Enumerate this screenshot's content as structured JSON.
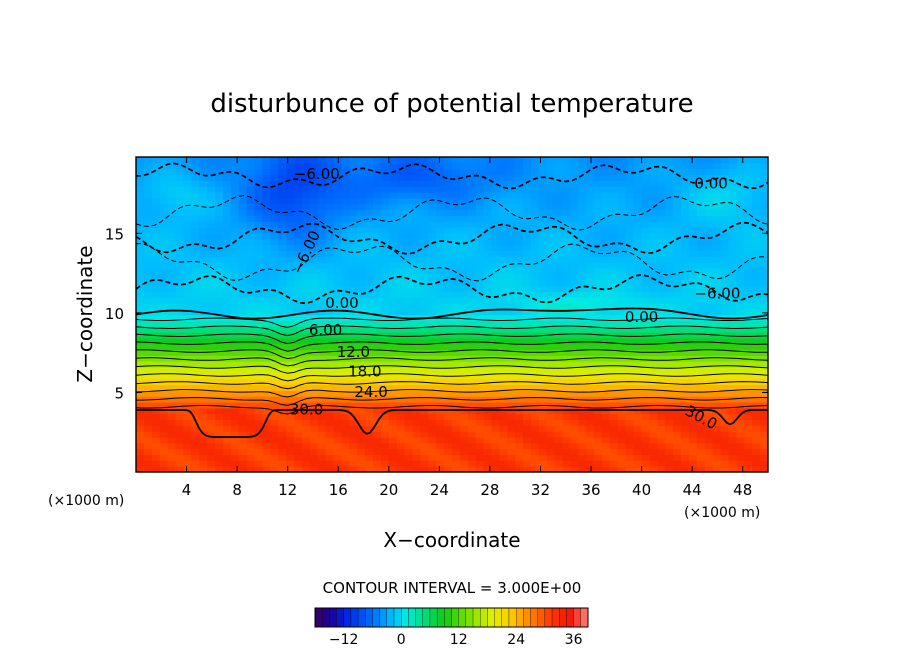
{
  "chart_data": {
    "type": "heatmap",
    "title": "disturbunce of potential temperature",
    "xlabel": "X−coordinate",
    "ylabel": "Z−coordinate",
    "x_unit_label": "(×1000 m)",
    "y_unit_label": "(×1000 m)",
    "xlim": [
      0,
      50
    ],
    "ylim": [
      0,
      19.8
    ],
    "x_ticks": [
      4,
      8,
      12,
      16,
      20,
      24,
      28,
      32,
      36,
      40,
      44,
      48
    ],
    "y_ticks": [
      5,
      10,
      15
    ],
    "contour_interval_text": "CONTOUR INTERVAL = 3.000E+00",
    "contour_interval": 3.0,
    "colorbar": {
      "min": -18,
      "max": 39,
      "ticks": [
        -12,
        0,
        12,
        24,
        36
      ],
      "colormap": "rainbow"
    },
    "contour_labels": [
      {
        "text": "−6.00",
        "x": 14.3,
        "z": 18.7,
        "rot": 0
      },
      {
        "text": "−6.00",
        "x": 13.5,
        "z": 13.8,
        "rot": -65
      },
      {
        "text": "0.00",
        "x": 45.5,
        "z": 18.1,
        "rot": 0
      },
      {
        "text": "0.00",
        "x": 16.3,
        "z": 10.6,
        "rot": 0
      },
      {
        "text": "0.00",
        "x": 40.0,
        "z": 9.7,
        "rot": 0
      },
      {
        "text": "−6.00",
        "x": 46.0,
        "z": 11.2,
        "rot": 0
      },
      {
        "text": "6.00",
        "x": 15.0,
        "z": 8.9,
        "rot": 0
      },
      {
        "text": "12.0",
        "x": 17.2,
        "z": 7.5,
        "rot": 0
      },
      {
        "text": "18.0",
        "x": 18.1,
        "z": 6.3,
        "rot": 0
      },
      {
        "text": "24.0",
        "x": 18.6,
        "z": 5.0,
        "rot": 0
      },
      {
        "text": "30.0",
        "x": 13.5,
        "z": 3.9,
        "rot": 0
      },
      {
        "text": "30.0",
        "x": 44.7,
        "z": 3.4,
        "rot": 28
      }
    ]
  }
}
